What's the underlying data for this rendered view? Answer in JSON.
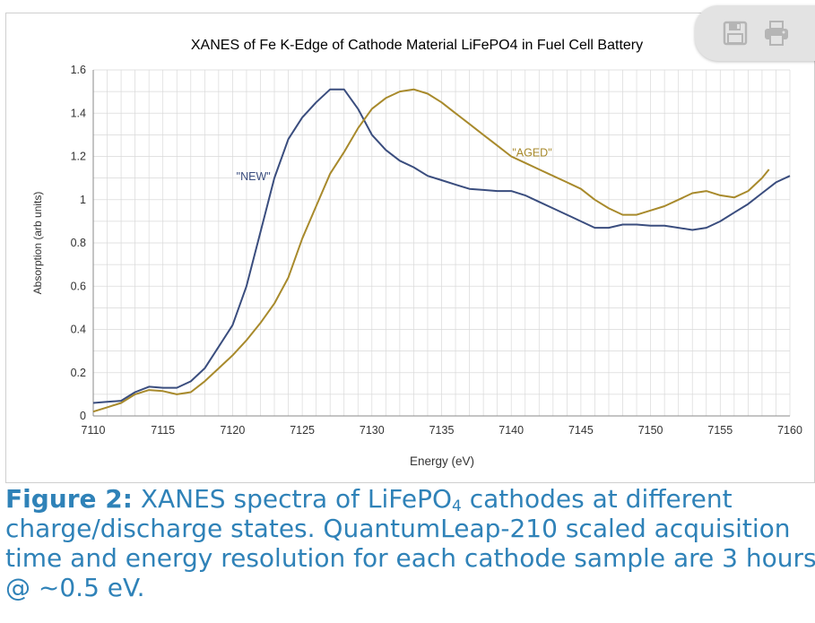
{
  "toolbar": {
    "save_icon": "floppy-disk-icon",
    "print_icon": "printer-icon"
  },
  "caption": {
    "label": "Figure 2:",
    "line1_pre": " XANES spectra of LiFePO",
    "line1_sub": "4",
    "line1_post": " cathodes at different",
    "line2": "charge/discharge states. QuantumLeap-210 scaled acquisition",
    "line3": "time and energy resolution for each cathode sample are 3 hours",
    "line4": "@ ~0.5 eV."
  },
  "colors": {
    "new": "#3a4d7e",
    "aged": "#a88a2c",
    "grid": "#d9d9d9",
    "caption": "#2f82b8"
  },
  "chart_data": {
    "type": "line",
    "title": "XANES of Fe K-Edge of Cathode Material LiFePO4 in Fuel Cell Battery",
    "xlabel": "Energy (eV)",
    "ylabel": "Absorption (arb units)",
    "xlim": [
      7110,
      7160
    ],
    "ylim": [
      0,
      1.6
    ],
    "xticks": [
      7110,
      7115,
      7120,
      7125,
      7130,
      7135,
      7140,
      7145,
      7150,
      7155,
      7160
    ],
    "yticks": [
      0,
      0.2,
      0.4,
      0.6,
      0.8,
      1,
      1.2,
      1.4,
      1.6
    ],
    "ytick_labels": [
      "0",
      "0.2",
      "0.4",
      "0.6",
      "0.8",
      "1",
      "1.2",
      "1.4",
      "1.6"
    ],
    "grid": true,
    "legend": "none",
    "series": [
      {
        "name": "\"NEW\"",
        "points": [
          [
            7110,
            0.06
          ],
          [
            7111,
            0.065
          ],
          [
            7112,
            0.07
          ],
          [
            7113,
            0.11
          ],
          [
            7114,
            0.135
          ],
          [
            7115,
            0.13
          ],
          [
            7116,
            0.13
          ],
          [
            7117,
            0.16
          ],
          [
            7118,
            0.22
          ],
          [
            7119,
            0.32
          ],
          [
            7120,
            0.42
          ],
          [
            7121,
            0.6
          ],
          [
            7122,
            0.85
          ],
          [
            7123,
            1.1
          ],
          [
            7124,
            1.28
          ],
          [
            7125,
            1.38
          ],
          [
            7126,
            1.45
          ],
          [
            7127,
            1.51
          ],
          [
            7128,
            1.51
          ],
          [
            7129,
            1.42
          ],
          [
            7130,
            1.3
          ],
          [
            7131,
            1.23
          ],
          [
            7132,
            1.18
          ],
          [
            7133,
            1.15
          ],
          [
            7134,
            1.11
          ],
          [
            7135,
            1.09
          ],
          [
            7136,
            1.07
          ],
          [
            7137,
            1.05
          ],
          [
            7138,
            1.045
          ],
          [
            7139,
            1.04
          ],
          [
            7140,
            1.04
          ],
          [
            7141,
            1.02
          ],
          [
            7142,
            0.99
          ],
          [
            7143,
            0.96
          ],
          [
            7144,
            0.93
          ],
          [
            7145,
            0.9
          ],
          [
            7146,
            0.87
          ],
          [
            7147,
            0.87
          ],
          [
            7148,
            0.885
          ],
          [
            7149,
            0.885
          ],
          [
            7150,
            0.88
          ],
          [
            7151,
            0.88
          ],
          [
            7152,
            0.87
          ],
          [
            7153,
            0.86
          ],
          [
            7154,
            0.87
          ],
          [
            7155,
            0.9
          ],
          [
            7156,
            0.94
          ],
          [
            7157,
            0.98
          ],
          [
            7158,
            1.03
          ],
          [
            7159,
            1.08
          ],
          [
            7160,
            1.11
          ]
        ]
      },
      {
        "name": "\"AGED\"",
        "points": [
          [
            7110,
            0.02
          ],
          [
            7111,
            0.04
          ],
          [
            7112,
            0.06
          ],
          [
            7113,
            0.1
          ],
          [
            7114,
            0.12
          ],
          [
            7115,
            0.115
          ],
          [
            7116,
            0.1
          ],
          [
            7117,
            0.11
          ],
          [
            7118,
            0.16
          ],
          [
            7119,
            0.22
          ],
          [
            7120,
            0.28
          ],
          [
            7121,
            0.35
          ],
          [
            7122,
            0.43
          ],
          [
            7123,
            0.52
          ],
          [
            7124,
            0.64
          ],
          [
            7125,
            0.82
          ],
          [
            7126,
            0.97
          ],
          [
            7127,
            1.12
          ],
          [
            7128,
            1.22
          ],
          [
            7129,
            1.33
          ],
          [
            7130,
            1.42
          ],
          [
            7131,
            1.47
          ],
          [
            7132,
            1.5
          ],
          [
            7133,
            1.51
          ],
          [
            7134,
            1.49
          ],
          [
            7135,
            1.45
          ],
          [
            7136,
            1.4
          ],
          [
            7137,
            1.35
          ],
          [
            7138,
            1.3
          ],
          [
            7139,
            1.25
          ],
          [
            7140,
            1.2
          ],
          [
            7141,
            1.17
          ],
          [
            7142,
            1.14
          ],
          [
            7143,
            1.11
          ],
          [
            7144,
            1.08
          ],
          [
            7145,
            1.05
          ],
          [
            7146,
            1.0
          ],
          [
            7147,
            0.96
          ],
          [
            7148,
            0.93
          ],
          [
            7149,
            0.93
          ],
          [
            7150,
            0.95
          ],
          [
            7151,
            0.97
          ],
          [
            7152,
            1.0
          ],
          [
            7153,
            1.03
          ],
          [
            7154,
            1.04
          ],
          [
            7155,
            1.02
          ],
          [
            7156,
            1.01
          ],
          [
            7157,
            1.04
          ],
          [
            7158,
            1.1
          ],
          [
            7158.5,
            1.14
          ]
        ]
      }
    ],
    "annotations": [
      {
        "text": "\"NEW\"",
        "x": 7121.5,
        "y": 1.09,
        "series": "new"
      },
      {
        "text": "\"AGED\"",
        "x": 7141.5,
        "y": 1.2,
        "series": "aged"
      }
    ]
  }
}
